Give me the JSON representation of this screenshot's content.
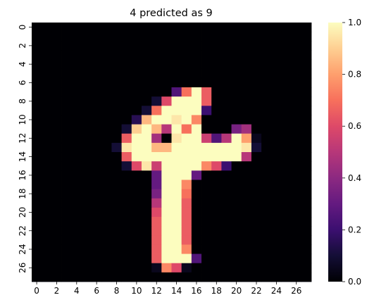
{
  "chart_data": {
    "type": "heatmap",
    "title": "4 predicted as 9",
    "xlabel": "",
    "ylabel": "",
    "rows": 28,
    "cols": 28,
    "x_ticks": [
      "0",
      "2",
      "4",
      "6",
      "8",
      "10",
      "12",
      "14",
      "16",
      "18",
      "20",
      "22",
      "24",
      "26"
    ],
    "y_ticks": [
      "0",
      "2",
      "4",
      "6",
      "8",
      "10",
      "12",
      "14",
      "16",
      "18",
      "20",
      "22",
      "24",
      "26"
    ],
    "colorbar": {
      "min": 0.0,
      "max": 1.0,
      "ticks": [
        "0.0",
        "0.2",
        "0.4",
        "0.6",
        "0.8",
        "1.0"
      ]
    },
    "colormap": "magma",
    "values": [
      [
        0,
        0,
        0,
        0,
        0,
        0,
        0,
        0,
        0,
        0,
        0,
        0,
        0,
        0,
        0,
        0,
        0,
        0,
        0,
        0,
        0,
        0,
        0,
        0,
        0,
        0,
        0,
        0
      ],
      [
        0,
        0,
        0,
        0,
        0,
        0,
        0,
        0,
        0,
        0,
        0,
        0,
        0,
        0,
        0,
        0,
        0,
        0,
        0,
        0,
        0,
        0,
        0,
        0,
        0,
        0,
        0,
        0
      ],
      [
        0,
        0,
        0,
        0,
        0,
        0,
        0,
        0,
        0,
        0,
        0,
        0,
        0,
        0,
        0,
        0,
        0,
        0,
        0,
        0,
        0,
        0,
        0,
        0,
        0,
        0,
        0,
        0
      ],
      [
        0,
        0,
        0,
        0,
        0,
        0,
        0,
        0,
        0,
        0,
        0,
        0,
        0,
        0,
        0,
        0,
        0,
        0,
        0,
        0,
        0,
        0,
        0,
        0,
        0,
        0,
        0,
        0
      ],
      [
        0,
        0,
        0,
        0,
        0,
        0,
        0,
        0,
        0,
        0,
        0,
        0,
        0,
        0,
        0,
        0,
        0,
        0,
        0,
        0,
        0,
        0,
        0,
        0,
        0,
        0,
        0,
        0
      ],
      [
        0,
        0,
        0,
        0,
        0,
        0,
        0,
        0,
        0,
        0,
        0,
        0,
        0,
        0,
        0,
        0,
        0,
        0,
        0,
        0,
        0,
        0,
        0,
        0,
        0,
        0,
        0,
        0
      ],
      [
        0,
        0,
        0,
        0,
        0,
        0,
        0,
        0,
        0,
        0,
        0,
        0,
        0,
        0,
        0,
        0,
        0,
        0,
        0,
        0,
        0,
        0,
        0,
        0,
        0,
        0,
        0,
        0
      ],
      [
        0,
        0,
        0,
        0,
        0,
        0,
        0,
        0,
        0,
        0,
        0,
        0,
        0,
        0,
        0.25,
        0.7,
        1,
        0.65,
        0,
        0,
        0,
        0,
        0,
        0,
        0,
        0,
        0,
        0
      ],
      [
        0,
        0,
        0,
        0,
        0,
        0,
        0,
        0,
        0,
        0,
        0,
        0,
        0.1,
        0.6,
        1,
        1,
        1,
        0.65,
        0,
        0,
        0,
        0,
        0,
        0,
        0,
        0,
        0,
        0
      ],
      [
        0,
        0,
        0,
        0,
        0,
        0,
        0,
        0,
        0,
        0,
        0,
        0.1,
        0.7,
        1,
        1,
        1,
        1,
        0.2,
        0,
        0,
        0,
        0,
        0,
        0,
        0,
        0,
        0,
        0
      ],
      [
        0,
        0,
        0,
        0,
        0,
        0,
        0,
        0,
        0,
        0,
        0.15,
        0.85,
        1,
        1,
        0.95,
        1,
        0.75,
        0,
        0,
        0,
        0,
        0,
        0,
        0,
        0,
        0,
        0,
        0
      ],
      [
        0,
        0,
        0,
        0,
        0,
        0,
        0,
        0,
        0,
        0.1,
        0.9,
        1,
        0.85,
        0.5,
        1,
        0.7,
        1,
        0,
        0,
        0,
        0.35,
        0.45,
        0,
        0,
        0,
        0,
        0,
        0
      ],
      [
        0,
        0,
        0,
        0,
        0,
        0,
        0,
        0,
        0,
        0.65,
        1,
        1,
        0.45,
        0,
        0.95,
        1,
        1,
        0.55,
        0.25,
        0.5,
        1,
        0.8,
        0.05,
        0,
        0,
        0,
        0,
        0
      ],
      [
        0,
        0,
        0,
        0,
        0,
        0,
        0,
        0,
        0.1,
        0.95,
        1,
        1,
        0.85,
        0.85,
        1,
        1,
        1,
        1,
        1,
        1,
        1,
        0.95,
        0.1,
        0,
        0,
        0,
        0,
        0
      ],
      [
        0,
        0,
        0,
        0,
        0,
        0,
        0,
        0,
        0,
        0.65,
        1,
        1,
        1,
        1,
        1,
        1,
        1,
        1,
        1,
        1,
        1,
        0.5,
        0,
        0,
        0,
        0,
        0,
        0
      ],
      [
        0,
        0,
        0,
        0,
        0,
        0,
        0,
        0,
        0,
        0.1,
        0.6,
        0.95,
        0.55,
        1,
        1,
        1,
        1,
        0.75,
        0.6,
        0.2,
        0,
        0,
        0,
        0,
        0,
        0,
        0,
        0
      ],
      [
        0,
        0,
        0,
        0,
        0,
        0,
        0,
        0,
        0,
        0,
        0,
        0,
        0.3,
        1,
        1,
        1,
        0.3,
        0,
        0,
        0,
        0,
        0,
        0,
        0,
        0,
        0,
        0,
        0
      ],
      [
        0,
        0,
        0,
        0,
        0,
        0,
        0,
        0,
        0,
        0,
        0,
        0,
        0.3,
        1,
        1,
        0.75,
        0,
        0,
        0,
        0,
        0,
        0,
        0,
        0,
        0,
        0,
        0,
        0
      ],
      [
        0,
        0,
        0,
        0,
        0,
        0,
        0,
        0,
        0,
        0,
        0,
        0,
        0.35,
        1,
        1,
        0.7,
        0,
        0,
        0,
        0,
        0,
        0,
        0,
        0,
        0,
        0,
        0,
        0
      ],
      [
        0,
        0,
        0,
        0,
        0,
        0,
        0,
        0,
        0,
        0,
        0,
        0,
        0.5,
        1,
        1,
        0.65,
        0,
        0,
        0,
        0,
        0,
        0,
        0,
        0,
        0,
        0,
        0,
        0
      ],
      [
        0,
        0,
        0,
        0,
        0,
        0,
        0,
        0,
        0,
        0,
        0,
        0,
        0.6,
        1,
        1,
        0.65,
        0,
        0,
        0,
        0,
        0,
        0,
        0,
        0,
        0,
        0,
        0,
        0
      ],
      [
        0,
        0,
        0,
        0,
        0,
        0,
        0,
        0,
        0,
        0,
        0,
        0,
        0.65,
        1,
        1,
        0.65,
        0,
        0,
        0,
        0,
        0,
        0,
        0,
        0,
        0,
        0,
        0,
        0
      ],
      [
        0,
        0,
        0,
        0,
        0,
        0,
        0,
        0,
        0,
        0,
        0,
        0,
        0.65,
        1,
        1,
        0.65,
        0,
        0,
        0,
        0,
        0,
        0,
        0,
        0,
        0,
        0,
        0,
        0
      ],
      [
        0,
        0,
        0,
        0,
        0,
        0,
        0,
        0,
        0,
        0,
        0,
        0,
        0.65,
        1,
        1,
        0.65,
        0,
        0,
        0,
        0,
        0,
        0,
        0,
        0,
        0,
        0,
        0,
        0
      ],
      [
        0,
        0,
        0,
        0,
        0,
        0,
        0,
        0,
        0,
        0,
        0,
        0,
        0.65,
        1,
        1,
        0.75,
        0,
        0,
        0,
        0,
        0,
        0,
        0,
        0,
        0,
        0,
        0,
        0
      ],
      [
        0,
        0,
        0,
        0,
        0,
        0,
        0,
        0,
        0,
        0,
        0,
        0,
        0.65,
        1,
        1,
        1,
        0.25,
        0,
        0,
        0,
        0,
        0,
        0,
        0,
        0,
        0,
        0,
        0
      ],
      [
        0,
        0,
        0,
        0,
        0,
        0,
        0,
        0,
        0,
        0,
        0,
        0,
        0.05,
        0.75,
        0.6,
        0.05,
        0,
        0,
        0,
        0,
        0,
        0,
        0,
        0,
        0,
        0,
        0,
        0
      ],
      [
        0,
        0,
        0,
        0,
        0,
        0,
        0,
        0,
        0,
        0,
        0,
        0,
        0,
        0,
        0,
        0,
        0,
        0,
        0,
        0,
        0,
        0,
        0,
        0,
        0,
        0,
        0,
        0
      ]
    ]
  }
}
